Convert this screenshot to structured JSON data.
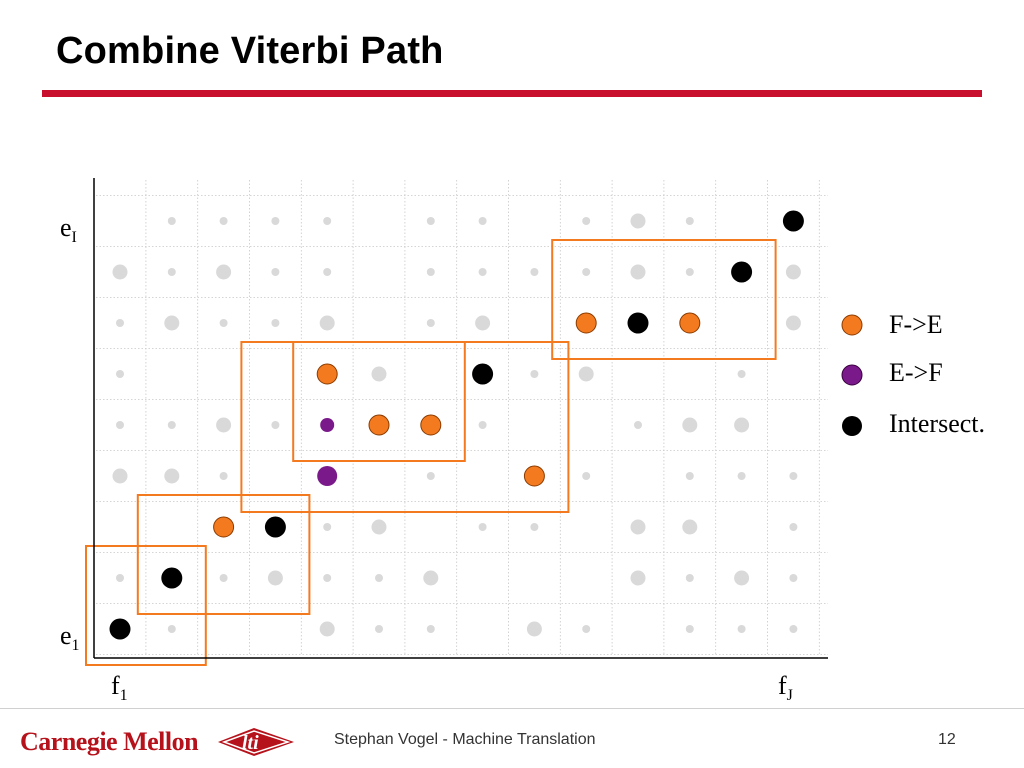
{
  "slide": {
    "title": "Combine Viterbi Path",
    "footer": "Stephan Vogel - Machine Translation",
    "page_number": "12"
  },
  "diagram": {
    "y_top_label": {
      "base": "e",
      "sub": "I"
    },
    "y_bottom_label": {
      "base": "e",
      "sub": "1"
    },
    "x_left_label": {
      "base": "f",
      "sub": "1"
    },
    "x_right_label": {
      "base": "f",
      "sub": "J"
    },
    "colors": {
      "fe": "#f47a20",
      "ef": "#7a1a8a",
      "intersect": "#000000",
      "grey": "#d9d9d9",
      "box": "#f47a20",
      "grid": "#c8c8c8"
    },
    "legend": [
      {
        "label": "F->E",
        "type": "fe"
      },
      {
        "label": "E->F",
        "type": "ef"
      },
      {
        "label": "Intersect.",
        "type": "intersect"
      }
    ],
    "columns": 14,
    "rows": 9,
    "alignment_points": [
      {
        "col": 1,
        "row": 1,
        "type": "intersect"
      },
      {
        "col": 2,
        "row": 2,
        "type": "intersect"
      },
      {
        "col": 3,
        "row": 3,
        "type": "fe"
      },
      {
        "col": 4,
        "row": 3,
        "type": "intersect"
      },
      {
        "col": 5,
        "row": 4,
        "type": "ef"
      },
      {
        "col": 5,
        "row": 5,
        "type": "ef"
      },
      {
        "col": 5,
        "row": 6,
        "type": "fe"
      },
      {
        "col": 6,
        "row": 5,
        "type": "fe"
      },
      {
        "col": 7,
        "row": 5,
        "type": "fe"
      },
      {
        "col": 8,
        "row": 6,
        "type": "intersect"
      },
      {
        "col": 9,
        "row": 4,
        "type": "fe"
      },
      {
        "col": 10,
        "row": 7,
        "type": "fe"
      },
      {
        "col": 11,
        "row": 7,
        "type": "intersect"
      },
      {
        "col": 12,
        "row": 7,
        "type": "fe"
      },
      {
        "col": 13,
        "row": 8,
        "type": "intersect"
      },
      {
        "col": 14,
        "row": 9,
        "type": "intersect"
      }
    ],
    "grey_points": [
      [
        2,
        1,
        "s"
      ],
      [
        5,
        1,
        "l"
      ],
      [
        6,
        1,
        "s"
      ],
      [
        7,
        1,
        "s"
      ],
      [
        9,
        1,
        "l"
      ],
      [
        10,
        1,
        "s"
      ],
      [
        12,
        1,
        "s"
      ],
      [
        13,
        1,
        "s"
      ],
      [
        14,
        1,
        "s"
      ],
      [
        1,
        2,
        "s"
      ],
      [
        3,
        2,
        "s"
      ],
      [
        4,
        2,
        "l"
      ],
      [
        5,
        2,
        "s"
      ],
      [
        6,
        2,
        "s"
      ],
      [
        7,
        2,
        "l"
      ],
      [
        11,
        2,
        "l"
      ],
      [
        12,
        2,
        "s"
      ],
      [
        13,
        2,
        "l"
      ],
      [
        14,
        2,
        "s"
      ],
      [
        3,
        3,
        "s"
      ],
      [
        5,
        3,
        "s"
      ],
      [
        6,
        3,
        "l"
      ],
      [
        8,
        3,
        "s"
      ],
      [
        9,
        3,
        "s"
      ],
      [
        11,
        3,
        "l"
      ],
      [
        12,
        3,
        "l"
      ],
      [
        14,
        3,
        "s"
      ],
      [
        1,
        4,
        "l"
      ],
      [
        2,
        4,
        "l"
      ],
      [
        3,
        4,
        "s"
      ],
      [
        7,
        4,
        "s"
      ],
      [
        10,
        4,
        "s"
      ],
      [
        12,
        4,
        "s"
      ],
      [
        13,
        4,
        "s"
      ],
      [
        14,
        4,
        "s"
      ],
      [
        1,
        5,
        "s"
      ],
      [
        2,
        5,
        "s"
      ],
      [
        3,
        5,
        "l"
      ],
      [
        4,
        5,
        "s"
      ],
      [
        8,
        5,
        "s"
      ],
      [
        11,
        5,
        "s"
      ],
      [
        12,
        5,
        "l"
      ],
      [
        13,
        5,
        "l"
      ],
      [
        1,
        6,
        "s"
      ],
      [
        6,
        6,
        "l"
      ],
      [
        9,
        6,
        "s"
      ],
      [
        10,
        6,
        "l"
      ],
      [
        13,
        6,
        "s"
      ],
      [
        1,
        7,
        "s"
      ],
      [
        2,
        7,
        "l"
      ],
      [
        3,
        7,
        "s"
      ],
      [
        4,
        7,
        "s"
      ],
      [
        5,
        7,
        "l"
      ],
      [
        7,
        7,
        "s"
      ],
      [
        8,
        7,
        "l"
      ],
      [
        14,
        7,
        "l"
      ],
      [
        1,
        8,
        "l"
      ],
      [
        2,
        8,
        "s"
      ],
      [
        3,
        8,
        "l"
      ],
      [
        4,
        8,
        "s"
      ],
      [
        5,
        8,
        "s"
      ],
      [
        7,
        8,
        "s"
      ],
      [
        8,
        8,
        "s"
      ],
      [
        9,
        8,
        "s"
      ],
      [
        10,
        8,
        "s"
      ],
      [
        11,
        8,
        "l"
      ],
      [
        12,
        8,
        "s"
      ],
      [
        14,
        8,
        "l"
      ],
      [
        2,
        9,
        "s"
      ],
      [
        3,
        9,
        "s"
      ],
      [
        4,
        9,
        "s"
      ],
      [
        5,
        9,
        "s"
      ],
      [
        7,
        9,
        "s"
      ],
      [
        8,
        9,
        "s"
      ],
      [
        10,
        9,
        "s"
      ],
      [
        11,
        9,
        "l"
      ],
      [
        12,
        9,
        "s"
      ],
      [
        14,
        9,
        "s"
      ]
    ],
    "blocks": [
      {
        "col_from": 1,
        "col_to": 2,
        "row_from": 1,
        "row_to": 2
      },
      {
        "col_from": 2,
        "col_to": 4,
        "row_from": 2,
        "row_to": 3
      },
      {
        "col_from": 4,
        "col_to": 9,
        "row_from": 4,
        "row_to": 6
      },
      {
        "col_from": 5,
        "col_to": 7,
        "row_from": 5,
        "row_to": 6
      },
      {
        "col_from": 10,
        "col_to": 13,
        "row_from": 7,
        "row_to": 8
      }
    ]
  }
}
